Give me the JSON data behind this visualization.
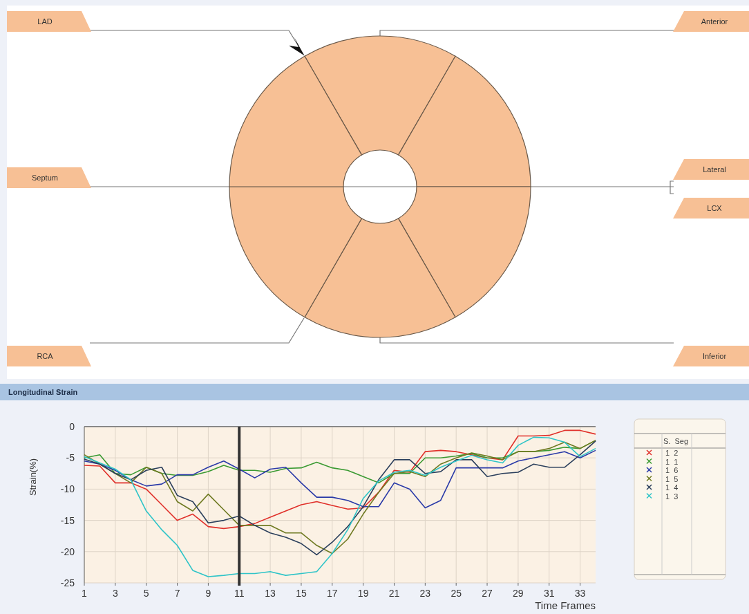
{
  "chart_data": [
    {
      "type": "other",
      "annotations": [
        "LAD",
        "Anterior",
        "Septum",
        "Lateral",
        "LCX",
        "RCA",
        "Inferior"
      ]
    },
    {
      "type": "line",
      "title": "Longitudinal Strain",
      "xlabel": "Time Frames",
      "ylabel": "Strain(%)",
      "x": [
        1,
        2,
        3,
        4,
        5,
        6,
        7,
        8,
        9,
        10,
        11,
        12,
        13,
        14,
        15,
        16,
        17,
        18,
        19,
        20,
        21,
        22,
        23,
        24,
        25,
        26,
        27,
        28,
        29,
        30,
        31,
        32,
        33,
        34
      ],
      "xlim": [
        1,
        34
      ],
      "xticks": [
        1,
        3,
        5,
        7,
        9,
        11,
        13,
        15,
        17,
        19,
        21,
        23,
        25,
        27,
        29,
        31,
        33
      ],
      "ylim": [
        -25,
        0
      ],
      "yticks": [
        -25,
        -20,
        -15,
        -10,
        -5,
        0
      ],
      "grid": true,
      "legend": "right",
      "legend_title": "S.  Seg",
      "ref_lines": [
        {
          "axis": "x",
          "value": 11,
          "color": "#333333"
        }
      ],
      "series": [
        {
          "name": "1  2",
          "color": "#e0302a",
          "values": [
            -6.2,
            -6.3,
            -9,
            -9,
            -10,
            -12.5,
            -15,
            -14,
            -16,
            -16.3,
            -16,
            -15.5,
            -14.5,
            -13.5,
            -12.5,
            -12,
            -12.6,
            -13.2,
            -13,
            -10.5,
            -7,
            -7.3,
            -4,
            -3.8,
            -4,
            -4.5,
            -5,
            -5.3,
            -1.5,
            -1.5,
            -1.4,
            -0.6,
            -0.6,
            -1.2
          ]
        },
        {
          "name": "1  1",
          "color": "#3a9a32",
          "values": [
            -5,
            -4.5,
            -7.5,
            -7.7,
            -6.5,
            -7.5,
            -7.8,
            -7.8,
            -7.2,
            -6.2,
            -7,
            -7,
            -7.3,
            -6.7,
            -6.6,
            -5.7,
            -6.6,
            -7,
            -8,
            -9,
            -7.5,
            -7.5,
            -5,
            -5,
            -4.7,
            -4.3,
            -5,
            -5,
            -4,
            -4,
            -3.8,
            -3.3,
            -3.5,
            -2.2
          ]
        },
        {
          "name": "1  6",
          "color": "#2a3aa8",
          "values": [
            -5.5,
            -6,
            -7,
            -8.5,
            -9.5,
            -9.2,
            -7.7,
            -7.7,
            -6.5,
            -5.5,
            -6.8,
            -8.2,
            -6.8,
            -6.5,
            -9,
            -11.3,
            -11.3,
            -11.8,
            -12.8,
            -12.8,
            -9,
            -10,
            -13,
            -11.8,
            -6.6,
            -6.6,
            -6.6,
            -6.6,
            -5.5,
            -5,
            -4.5,
            -4,
            -5,
            -3.8
          ]
        },
        {
          "name": "1  5",
          "color": "#6f7a22",
          "values": [
            -4.5,
            -6,
            -7.5,
            -9,
            -6.5,
            -7.5,
            -12,
            -13.5,
            -10.8,
            -13.3,
            -15.8,
            -15.8,
            -15.8,
            -17,
            -17,
            -19,
            -20.3,
            -18,
            -14,
            -10.5,
            -7.5,
            -7.2,
            -8,
            -6,
            -5,
            -4.2,
            -4.7,
            -5.3,
            -4,
            -4,
            -3.5,
            -2.5,
            -3.5,
            -2.2
          ]
        },
        {
          "name": "1  4",
          "color": "#2b3f5c",
          "values": [
            -5.2,
            -6,
            -7.5,
            -8.5,
            -7,
            -6.5,
            -11,
            -12,
            -15.4,
            -15,
            -14.3,
            -15.8,
            -17,
            -17.7,
            -18.7,
            -20.5,
            -18.5,
            -16,
            -12.8,
            -8.5,
            -5.3,
            -5.3,
            -7.5,
            -7.2,
            -5.3,
            -5.3,
            -8,
            -7.5,
            -7.3,
            -6,
            -6.5,
            -6.5,
            -4.5,
            -2.3
          ]
        },
        {
          "name": "1  3",
          "color": "#2ec4c8",
          "values": [
            -4.8,
            -5.8,
            -6.8,
            -8.5,
            -13.5,
            -16.5,
            -19,
            -23,
            -24,
            -23.8,
            -23.5,
            -23.5,
            -23.2,
            -23.8,
            -23.5,
            -23.2,
            -20.3,
            -16.5,
            -11.5,
            -8.7,
            -7.3,
            -7,
            -7.8,
            -6.5,
            -5.5,
            -4.6,
            -5.3,
            -5.8,
            -3,
            -1.7,
            -1.8,
            -2.5,
            -4.8,
            -3.5
          ]
        }
      ]
    }
  ]
}
